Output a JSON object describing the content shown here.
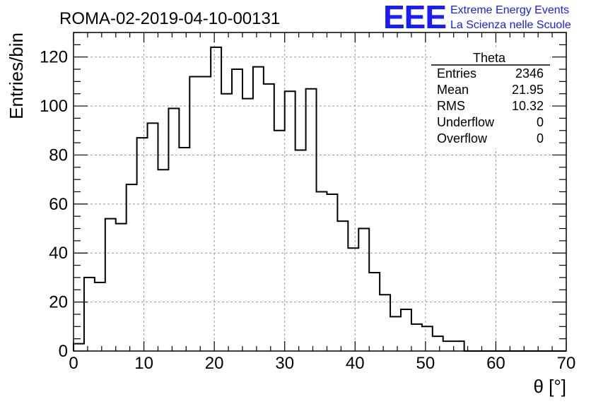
{
  "run_title": "ROMA-02-2019-04-10-00131",
  "logo": {
    "mark": "EEE",
    "line1": "Extreme Energy Events",
    "line2": "La Scienza nelle Scuole",
    "color": "#1a1aff"
  },
  "stats_box": {
    "title": "Theta",
    "rows": [
      {
        "label": "Entries",
        "value": "2346"
      },
      {
        "label": "Mean",
        "value": "21.95"
      },
      {
        "label": "RMS",
        "value": "10.32"
      },
      {
        "label": "Underflow",
        "value": "0"
      },
      {
        "label": "Overflow",
        "value": "0"
      }
    ]
  },
  "chart_data": {
    "type": "bar",
    "histogram": true,
    "title": "ROMA-02-2019-04-10-00131",
    "xlabel": "θ [°]",
    "ylabel": "Entries/bin",
    "xlim": [
      0,
      70
    ],
    "ylim": [
      0,
      130
    ],
    "grid": true,
    "x_ticks": [
      0,
      10,
      20,
      30,
      40,
      50,
      60,
      70
    ],
    "y_ticks": [
      0,
      20,
      40,
      60,
      80,
      100,
      120
    ],
    "bin_edges": [
      0,
      1.5,
      3,
      4.5,
      6,
      7.5,
      9,
      10.5,
      12,
      13.5,
      15,
      16.5,
      18,
      19.5,
      21,
      22.5,
      24,
      25.5,
      27,
      28.5,
      30,
      31.5,
      33,
      34.5,
      36,
      37.5,
      39,
      40.5,
      42,
      43.5,
      45,
      46.5,
      48,
      49.5,
      51,
      52.5,
      54,
      55.5,
      57,
      58.5,
      60,
      61.5,
      63,
      64.5,
      66,
      67.5,
      69,
      70.5
    ],
    "values": [
      3,
      30,
      28,
      54,
      52,
      68,
      87,
      93,
      74,
      99,
      83,
      112,
      112,
      124,
      105,
      115,
      103,
      116,
      109,
      90,
      106,
      82,
      107,
      65,
      64,
      53,
      42,
      50,
      32,
      23,
      14,
      17,
      11,
      10,
      6,
      4,
      4,
      0,
      0,
      0,
      0,
      0,
      0,
      0,
      0,
      0,
      0
    ],
    "line_color": "#000000"
  }
}
